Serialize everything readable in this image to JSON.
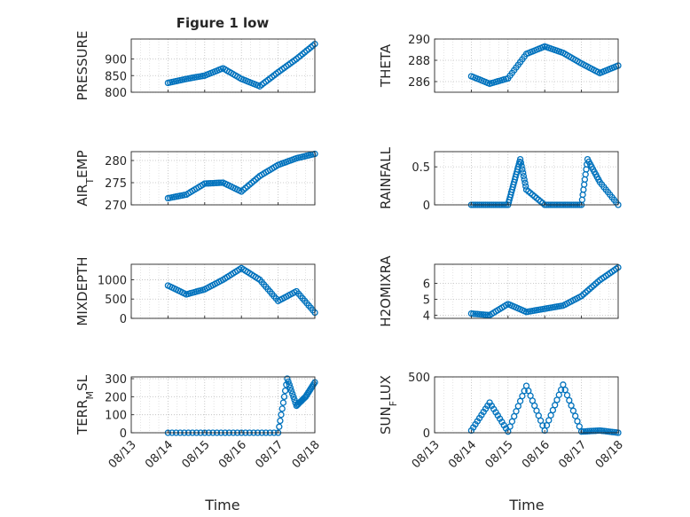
{
  "figure": {
    "title": "Figure 1 low",
    "marker_color": "#0072BD"
  },
  "chart_data": [
    {
      "type": "scatter",
      "title": "Figure 1 low",
      "ylabel": "PRESSURE",
      "ylim": [
        800,
        960
      ],
      "yticks": [
        800,
        850,
        900
      ],
      "x": [
        "08/14",
        "08/14 12:00",
        "08/15",
        "08/15 12:00",
        "08/16",
        "08/16 12:00",
        "08/17",
        "08/17 12:00",
        "08/18"
      ],
      "y": [
        828,
        840,
        850,
        872,
        840,
        818,
        860,
        900,
        945
      ]
    },
    {
      "type": "scatter",
      "ylabel": "THETA",
      "ylim": [
        285,
        290
      ],
      "yticks": [
        286,
        288,
        290
      ],
      "x": [
        "08/14",
        "08/14 12:00",
        "08/15",
        "08/15 12:00",
        "08/16",
        "08/16 12:00",
        "08/17",
        "08/17 12:00",
        "08/18"
      ],
      "y": [
        286.5,
        285.8,
        286.3,
        288.6,
        289.3,
        288.7,
        287.7,
        286.8,
        287.5
      ]
    },
    {
      "type": "scatter",
      "ylabel": "AIR_TEMP",
      "ylim": [
        270,
        282
      ],
      "yticks": [
        270,
        275,
        280
      ],
      "x": [
        "08/14",
        "08/14 12:00",
        "08/15",
        "08/15 12:00",
        "08/16",
        "08/16 12:00",
        "08/17",
        "08/17 12:00",
        "08/18"
      ],
      "y": [
        271.5,
        272.3,
        274.8,
        275.0,
        273.0,
        276.5,
        279.0,
        280.5,
        281.5
      ]
    },
    {
      "type": "scatter",
      "ylabel": "RAINFALL",
      "ylim": [
        0,
        0.7
      ],
      "yticks": [
        0,
        0.5
      ],
      "x": [
        "08/14",
        "08/14 12:00",
        "08/15",
        "08/15 04:00",
        "08/15 08:00",
        "08/15 12:00",
        "08/16",
        "08/16 12:00",
        "08/17",
        "08/17 04:00",
        "08/17 12:00",
        "08/18"
      ],
      "y": [
        0,
        0,
        0,
        0.3,
        0.6,
        0.2,
        0,
        0,
        0,
        0.6,
        0.3,
        0
      ]
    },
    {
      "type": "scatter",
      "ylabel": "MIXDEPTH",
      "ylim": [
        0,
        1400
      ],
      "yticks": [
        0,
        500,
        1000
      ],
      "x": [
        "08/14",
        "08/14 12:00",
        "08/15",
        "08/15 12:00",
        "08/16",
        "08/16 12:00",
        "08/17",
        "08/17 12:00",
        "08/18"
      ],
      "y": [
        850,
        620,
        750,
        1000,
        1300,
        1000,
        450,
        700,
        150
      ]
    },
    {
      "type": "scatter",
      "ylabel": "H2OMIXRA",
      "ylim": [
        3.8,
        7.2
      ],
      "yticks": [
        4,
        5,
        6
      ],
      "x": [
        "08/14",
        "08/14 12:00",
        "08/15",
        "08/15 12:00",
        "08/16",
        "08/16 12:00",
        "08/17",
        "08/17 12:00",
        "08/18"
      ],
      "y": [
        4.1,
        4.0,
        4.7,
        4.2,
        4.4,
        4.6,
        5.2,
        6.2,
        7.0
      ]
    },
    {
      "type": "scatter",
      "ylabel": "TERR_MSL",
      "ylim": [
        0,
        310
      ],
      "yticks": [
        0,
        100,
        200,
        300
      ],
      "x": [
        "08/14",
        "08/15",
        "08/16",
        "08/17",
        "08/17 06:00",
        "08/17 12:00",
        "08/17 18:00",
        "08/18"
      ],
      "y": [
        0,
        0,
        0,
        0,
        300,
        150,
        200,
        280
      ]
    },
    {
      "type": "scatter",
      "ylabel": "SUN_FLUX",
      "ylim": [
        0,
        500
      ],
      "yticks": [
        0,
        500
      ],
      "x": [
        "08/14",
        "08/14 12:00",
        "08/15",
        "08/15 12:00",
        "08/16",
        "08/16 12:00",
        "08/17",
        "08/17 12:00",
        "08/18"
      ],
      "y": [
        20,
        270,
        10,
        420,
        20,
        430,
        10,
        20,
        0
      ]
    }
  ],
  "x_axis": {
    "xlabel": "Time",
    "ticks": [
      "08/13",
      "08/14",
      "08/15",
      "08/16",
      "08/17",
      "08/18"
    ]
  }
}
